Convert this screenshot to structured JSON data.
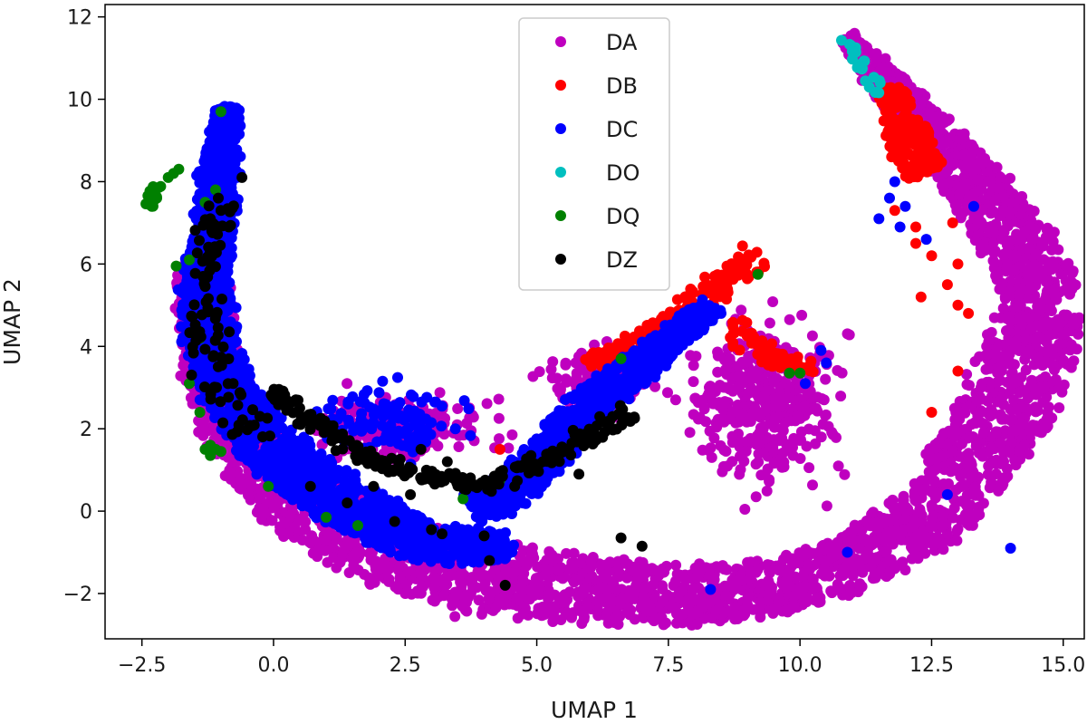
{
  "chart_data": {
    "type": "scatter",
    "title": "",
    "xlabel": "UMAP 1",
    "ylabel": "UMAP 2",
    "xlim": [
      -3.2,
      15.4
    ],
    "ylim": [
      -3.1,
      12.3
    ],
    "x_ticks": [
      -2.5,
      0.0,
      2.5,
      5.0,
      7.5,
      10.0,
      12.5,
      15.0
    ],
    "x_tick_labels": [
      "−2.5",
      "0.0",
      "2.5",
      "5.0",
      "7.5",
      "10.0",
      "12.5",
      "15.0"
    ],
    "y_ticks": [
      -2,
      0,
      2,
      4,
      6,
      8,
      10,
      12
    ],
    "y_tick_labels": [
      "−2",
      "0",
      "2",
      "4",
      "6",
      "8",
      "10",
      "12"
    ],
    "grid": false,
    "legend_position": "top-center",
    "series": [
      {
        "name": "DA",
        "color": "#bf00bf",
        "regions": [
          {
            "shape": "band",
            "path": [
              [
                -1.4,
                6.0
              ],
              [
                -1.2,
                3.5
              ],
              [
                -0.5,
                1.5
              ],
              [
                0.5,
                0.2
              ],
              [
                2.0,
                -0.9
              ],
              [
                3.5,
                -1.5
              ],
              [
                5.0,
                -1.8
              ],
              [
                7.0,
                -2.0
              ],
              [
                9.0,
                -2.0
              ],
              [
                11.0,
                -1.3
              ],
              [
                12.6,
                0.0
              ],
              [
                13.6,
                1.8
              ],
              [
                14.3,
                3.5
              ],
              [
                14.6,
                5.0
              ],
              [
                14.3,
                6.2
              ],
              [
                13.5,
                7.6
              ],
              [
                12.5,
                9.2
              ],
              [
                11.5,
                10.6
              ],
              [
                10.9,
                11.5
              ]
            ],
            "half_width": [
              0.45,
              0.55,
              0.7,
              0.8,
              0.9,
              0.9,
              0.85,
              0.75,
              0.65,
              0.65,
              0.75,
              0.85,
              0.9,
              0.75,
              0.7,
              0.6,
              0.45,
              0.3,
              0.1
            ],
            "count": 3600
          },
          {
            "shape": "blob",
            "center": [
              9.3,
              2.6
            ],
            "spread": [
              0.65,
              0.85
            ],
            "count": 380
          },
          {
            "shape": "blob",
            "center": [
              2.4,
              2.0
            ],
            "spread": [
              0.75,
              0.35
            ],
            "count": 200
          },
          {
            "shape": "blob",
            "center": [
              6.2,
              3.2
            ],
            "spread": [
              0.5,
              0.35
            ],
            "count": 120
          }
        ]
      },
      {
        "name": "DB",
        "color": "#ff0000",
        "regions": [
          {
            "shape": "band",
            "path": [
              [
                11.7,
                10.2
              ],
              [
                12.0,
                9.2
              ],
              [
                12.4,
                8.2
              ]
            ],
            "half_width": [
              0.25,
              0.4,
              0.35
            ],
            "count": 170
          },
          {
            "shape": "band",
            "path": [
              [
                6.0,
                3.6
              ],
              [
                7.2,
                4.3
              ],
              [
                8.4,
                5.4
              ],
              [
                9.2,
                6.2
              ]
            ],
            "half_width": [
              0.12,
              0.2,
              0.35,
              0.3
            ],
            "count": 170
          },
          {
            "shape": "band",
            "path": [
              [
                8.6,
                4.6
              ],
              [
                9.1,
                4.0
              ],
              [
                9.6,
                3.6
              ],
              [
                10.4,
                3.5
              ]
            ],
            "half_width": [
              0.3,
              0.25,
              0.2,
              0.15
            ],
            "count": 60
          },
          {
            "shape": "scatter",
            "points": [
              [
                12.2,
                6.9
              ],
              [
                12.5,
                6.2
              ],
              [
                12.8,
                5.5
              ],
              [
                13.0,
                5.0
              ],
              [
                13.2,
                4.8
              ],
              [
                12.5,
                2.4
              ],
              [
                13.0,
                3.4
              ],
              [
                12.3,
                5.2
              ],
              [
                11.8,
                7.3
              ],
              [
                12.9,
                7.0
              ],
              [
                4.3,
                1.5
              ],
              [
                13.0,
                6.0
              ],
              [
                12.2,
                6.5
              ]
            ]
          }
        ]
      },
      {
        "name": "DC",
        "color": "#0000ff",
        "regions": [
          {
            "shape": "band",
            "path": [
              [
                -0.9,
                9.8
              ],
              [
                -1.0,
                8.6
              ],
              [
                -1.1,
                7.2
              ],
              [
                -1.3,
                5.8
              ],
              [
                -1.25,
                4.4
              ],
              [
                -0.9,
                3.0
              ],
              [
                -0.3,
                1.9
              ],
              [
                0.5,
                0.9
              ],
              [
                1.5,
                0.1
              ],
              [
                2.5,
                -0.6
              ],
              [
                3.5,
                -0.9
              ],
              [
                4.5,
                -0.8
              ]
            ],
            "half_width": [
              0.18,
              0.3,
              0.35,
              0.4,
              0.45,
              0.5,
              0.55,
              0.6,
              0.6,
              0.5,
              0.4,
              0.3
            ],
            "count": 2100
          },
          {
            "shape": "band",
            "path": [
              [
                3.8,
                0.0
              ],
              [
                4.6,
                0.6
              ],
              [
                5.3,
                1.5
              ],
              [
                6.0,
                2.6
              ],
              [
                6.8,
                3.4
              ],
              [
                7.6,
                4.2
              ],
              [
                8.3,
                5.0
              ]
            ],
            "half_width": [
              0.35,
              0.4,
              0.45,
              0.4,
              0.35,
              0.3,
              0.2
            ],
            "count": 900
          },
          {
            "shape": "blob",
            "center": [
              2.2,
              2.2
            ],
            "spread": [
              0.6,
              0.4
            ],
            "count": 120
          },
          {
            "shape": "scatter",
            "points": [
              [
                11.8,
                8.0
              ],
              [
                12.0,
                7.4
              ],
              [
                11.9,
                6.9
              ],
              [
                11.5,
                7.1
              ],
              [
                13.3,
                7.4
              ],
              [
                12.4,
                6.6
              ],
              [
                11.7,
                7.6
              ],
              [
                8.5,
                4.8
              ],
              [
                10.5,
                3.6
              ],
              [
                10.1,
                3.1
              ],
              [
                14.0,
                -0.9
              ],
              [
                10.9,
                -1.0
              ],
              [
                8.3,
                -1.9
              ],
              [
                12.8,
                0.4
              ],
              [
                10.4,
                3.9
              ]
            ]
          }
        ]
      },
      {
        "name": "DO",
        "color": "#00bfbf",
        "regions": [
          {
            "shape": "band",
            "path": [
              [
                10.8,
                11.55
              ],
              [
                11.1,
                11.0
              ],
              [
                11.5,
                10.1
              ]
            ],
            "half_width": [
              0.06,
              0.1,
              0.08
            ],
            "count": 22
          }
        ]
      },
      {
        "name": "DQ",
        "color": "#008000",
        "regions": [
          {
            "shape": "blob",
            "center": [
              -2.3,
              7.6
            ],
            "spread": [
              0.14,
              0.22
            ],
            "count": 16
          },
          {
            "shape": "scatter",
            "points": [
              [
                -1.9,
                8.2
              ],
              [
                -2.0,
                8.1
              ],
              [
                -1.8,
                8.3
              ],
              [
                -1.3,
                7.5
              ],
              [
                -1.0,
                9.7
              ],
              [
                -1.1,
                7.8
              ],
              [
                -1.85,
                5.95
              ],
              [
                -1.6,
                6.1
              ],
              [
                -1.4,
                4.2
              ],
              [
                -1.6,
                3.1
              ],
              [
                -1.4,
                2.4
              ],
              [
                -1.2,
                1.6
              ],
              [
                -1.3,
                1.5
              ],
              [
                -1.1,
                1.5
              ],
              [
                -1.0,
                1.45
              ],
              [
                -1.2,
                1.35
              ],
              [
                -0.1,
                0.6
              ],
              [
                1.0,
                -0.15
              ],
              [
                1.6,
                -0.35
              ],
              [
                6.6,
                3.7
              ],
              [
                9.2,
                5.75
              ],
              [
                9.8,
                3.35
              ],
              [
                10.0,
                3.35
              ],
              [
                4.3,
                0.75
              ],
              [
                3.6,
                0.3
              ]
            ]
          }
        ]
      },
      {
        "name": "DZ",
        "color": "#000000",
        "regions": [
          {
            "shape": "band",
            "path": [
              [
                0.0,
                2.9
              ],
              [
                0.5,
                2.4
              ],
              [
                1.0,
                1.9
              ],
              [
                1.6,
                1.4
              ],
              [
                2.4,
                1.0
              ],
              [
                3.2,
                0.8
              ],
              [
                3.8,
                0.6
              ],
              [
                4.6,
                0.9
              ],
              [
                5.4,
                1.4
              ],
              [
                6.2,
                2.0
              ],
              [
                6.8,
                2.4
              ]
            ],
            "half_width": [
              0.12,
              0.18,
              0.2,
              0.2,
              0.18,
              0.16,
              0.15,
              0.18,
              0.2,
              0.2,
              0.15
            ],
            "count": 230
          },
          {
            "shape": "band",
            "path": [
              [
                -1.0,
                7.5
              ],
              [
                -1.25,
                6.0
              ],
              [
                -1.3,
                4.6
              ],
              [
                -1.1,
                3.4
              ],
              [
                -0.8,
                2.4
              ],
              [
                -0.2,
                1.6
              ]
            ],
            "half_width": [
              0.3,
              0.3,
              0.35,
              0.4,
              0.4,
              0.4
            ],
            "count": 95
          },
          {
            "shape": "scatter",
            "points": [
              [
                -0.6,
                8.1
              ],
              [
                -1.05,
                7.6
              ],
              [
                -1.2,
                7.1
              ],
              [
                -1.0,
                7.3
              ],
              [
                -1.25,
                7.0
              ],
              [
                -0.85,
                6.9
              ],
              [
                2.3,
                -0.25
              ],
              [
                3.0,
                -0.45
              ],
              [
                3.2,
                -0.55
              ],
              [
                4.1,
                -1.2
              ],
              [
                4.4,
                -1.8
              ],
              [
                6.6,
                -0.65
              ],
              [
                7.0,
                -0.85
              ],
              [
                2.8,
                1.5
              ],
              [
                3.3,
                1.2
              ],
              [
                5.8,
                0.9
              ],
              [
                4.0,
                -0.6
              ],
              [
                2.6,
                0.4
              ],
              [
                1.9,
                0.6
              ],
              [
                1.4,
                0.2
              ],
              [
                0.7,
                0.6
              ]
            ]
          }
        ]
      }
    ]
  }
}
